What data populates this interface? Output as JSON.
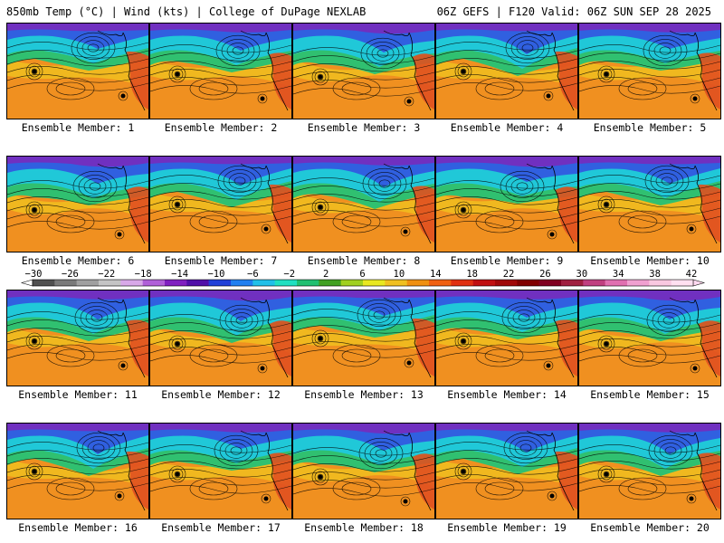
{
  "header": {
    "left_title": "850mb Temp (°C) | Wind (kts) | College of DuPage NEXLAB",
    "right_title": "06Z GEFS | F120 Valid: 06Z SUN SEP 28 2025"
  },
  "panels": [
    {
      "label": "Ensemble Member: 1"
    },
    {
      "label": "Ensemble Member: 2"
    },
    {
      "label": "Ensemble Member: 3"
    },
    {
      "label": "Ensemble Member: 4"
    },
    {
      "label": "Ensemble Member: 5"
    },
    {
      "label": "Ensemble Member: 6"
    },
    {
      "label": "Ensemble Member: 7"
    },
    {
      "label": "Ensemble Member: 8"
    },
    {
      "label": "Ensemble Member: 9"
    },
    {
      "label": "Ensemble Member: 10"
    },
    {
      "label": "Ensemble Member: 11"
    },
    {
      "label": "Ensemble Member: 12"
    },
    {
      "label": "Ensemble Member: 13"
    },
    {
      "label": "Ensemble Member: 14"
    },
    {
      "label": "Ensemble Member: 15"
    },
    {
      "label": "Ensemble Member: 16"
    },
    {
      "label": "Ensemble Member: 17"
    },
    {
      "label": "Ensemble Member: 18"
    },
    {
      "label": "Ensemble Member: 19"
    },
    {
      "label": "Ensemble Member: 20"
    }
  ],
  "colorbar": {
    "ticks": [
      "−30",
      "−26",
      "−22",
      "−18",
      "−14",
      "−10",
      "−6",
      "−2",
      "2",
      "6",
      "10",
      "14",
      "18",
      "22",
      "26",
      "30",
      "34",
      "38",
      "42"
    ],
    "colors": [
      "#505050",
      "#7a7a7a",
      "#a0a0a0",
      "#c4c4c4",
      "#d8a8e8",
      "#b060d8",
      "#8020c0",
      "#5010a8",
      "#2040d8",
      "#2080f0",
      "#20c0e8",
      "#20e0c0",
      "#20c070",
      "#40a020",
      "#a0d020",
      "#e8e820",
      "#f0c020",
      "#f09010",
      "#f06010",
      "#e03010",
      "#c01010",
      "#a00808",
      "#800000",
      "#800020",
      "#a02040",
      "#c04080",
      "#e070b0",
      "#f0a0d0",
      "#f8c8e0",
      "#ffe0f0"
    ]
  },
  "colors": {
    "arctic": "#7030c0",
    "cold": "#3060e0",
    "cool": "#20c8d8",
    "mild": "#30c070",
    "warm": "#f0c020",
    "hot": "#f09020",
    "land": "#e05020"
  }
}
